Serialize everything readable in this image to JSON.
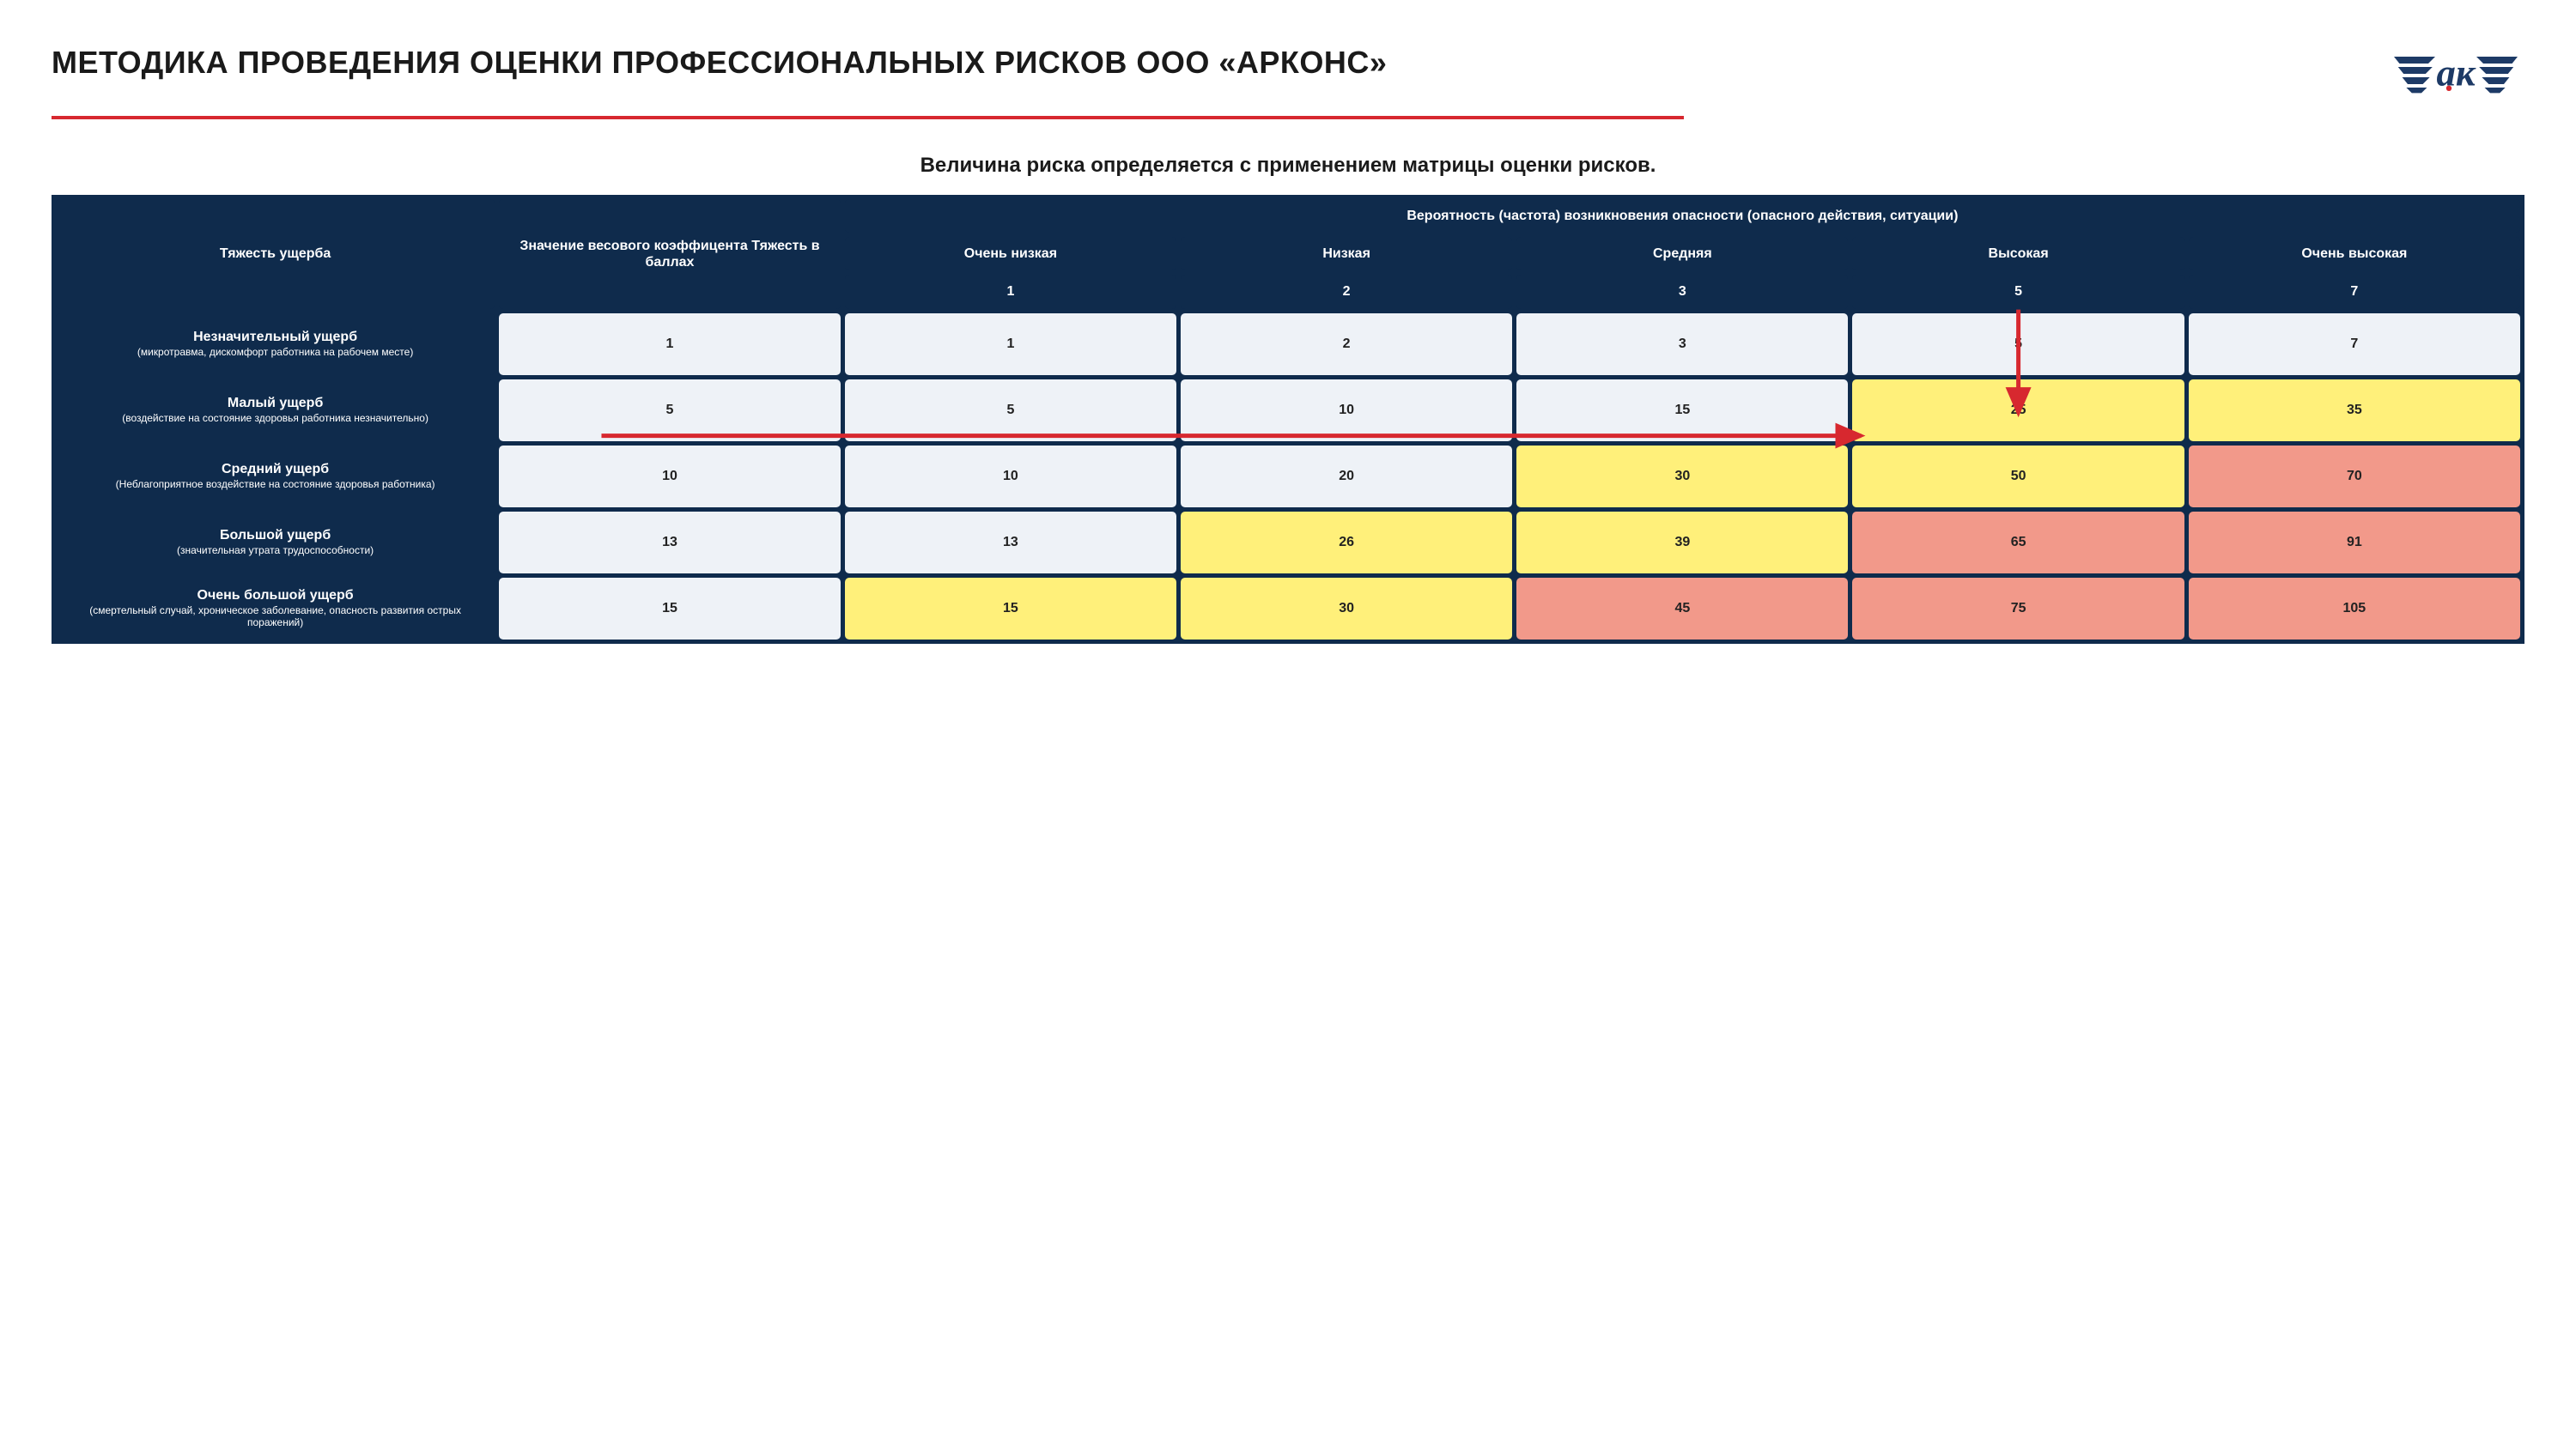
{
  "colors": {
    "brand_navy": "#1d3a66",
    "brand_red": "#d7282f",
    "table_bg": "#0f2b4c",
    "cell_low": "#eef2f7",
    "cell_med": "#fff07a",
    "cell_high": "#f2998a",
    "text_dark": "#1a1a1a"
  },
  "header": {
    "title": "МЕТОДИКА ПРОВЕДЕНИЯ ОЦЕНКИ ПРОФЕССИОНАЛЬНЫХ РИСКОВ ООО «АРКОНС»",
    "logo_text": "ак"
  },
  "subtitle": "Величина риска определяется с применением матрицы оценки рисков.",
  "matrix": {
    "col1_header": "Тяжесть ущерба",
    "col2_header": "Значение весового коэффицента Тяжесть в баллах",
    "prob_group_header": "Вероятность (частота) возникновения опасности (опасного действия, ситуации)",
    "prob_labels": [
      "Очень низкая",
      "Низкая",
      "Средняя",
      "Высокая",
      "Очень высокая"
    ],
    "prob_values": [
      "1",
      "2",
      "3",
      "5",
      "7"
    ],
    "rows": [
      {
        "label": "Незначительный ущерб",
        "sub": "(микротравма, дискомфорт работника на рабочем месте)",
        "weight": "1",
        "cells": [
          {
            "v": "1",
            "lvl": 0
          },
          {
            "v": "2",
            "lvl": 0
          },
          {
            "v": "3",
            "lvl": 0
          },
          {
            "v": "5",
            "lvl": 0
          },
          {
            "v": "7",
            "lvl": 0
          }
        ]
      },
      {
        "label": "Малый ущерб",
        "sub": "(воздействие на состояние здоровья работника незначительно)",
        "weight": "5",
        "cells": [
          {
            "v": "5",
            "lvl": 0
          },
          {
            "v": "10",
            "lvl": 0
          },
          {
            "v": "15",
            "lvl": 0
          },
          {
            "v": "25",
            "lvl": 1
          },
          {
            "v": "35",
            "lvl": 1
          }
        ]
      },
      {
        "label": "Средний ущерб",
        "sub": "(Неблагоприятное воздействие на состояние здоровья работника)",
        "weight": "10",
        "cells": [
          {
            "v": "10",
            "lvl": 0
          },
          {
            "v": "20",
            "lvl": 0
          },
          {
            "v": "30",
            "lvl": 1
          },
          {
            "v": "50",
            "lvl": 1
          },
          {
            "v": "70",
            "lvl": 2
          }
        ]
      },
      {
        "label": "Большой ущерб",
        "sub": "(значительная утрата трудоспособности)",
        "weight": "13",
        "cells": [
          {
            "v": "13",
            "lvl": 0
          },
          {
            "v": "26",
            "lvl": 1
          },
          {
            "v": "39",
            "lvl": 1
          },
          {
            "v": "65",
            "lvl": 2
          },
          {
            "v": "91",
            "lvl": 2
          }
        ]
      },
      {
        "label": "Очень большой ущерб",
        "sub": "(смертельный случай, хроническое заболевание, опасность развития острых поражений)",
        "weight": "15",
        "cells": [
          {
            "v": "15",
            "lvl": 1
          },
          {
            "v": "30",
            "lvl": 1
          },
          {
            "v": "45",
            "lvl": 2
          },
          {
            "v": "75",
            "lvl": 2
          },
          {
            "v": "105",
            "lvl": 2
          }
        ]
      }
    ],
    "thresholds": {
      "low_max": 15,
      "med_max": 50
    },
    "arrow": {
      "color": "#d7282f",
      "stroke_width": 5,
      "vertical": {
        "col_index": 3,
        "from_row": -1,
        "to_row": 1
      },
      "horizontal": {
        "row_index": 1,
        "from_col": -1,
        "to_col": 3
      }
    }
  }
}
